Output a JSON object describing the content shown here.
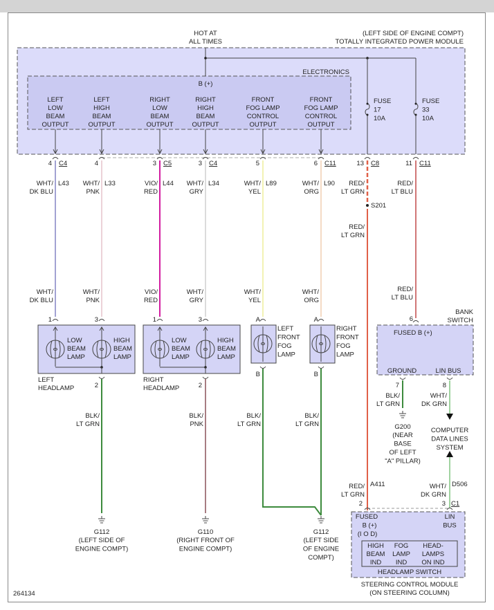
{
  "diagram_id": "264134",
  "colors": {
    "module_fill": "#dcdcfa",
    "electronics_fill": "#cacaf2",
    "component_fill": "#d4d4f6"
  },
  "tipm": {
    "location": "(LEFT SIDE OF ENGINE COMPT)",
    "name": "TOTALLY INTEGRATED POWER MODULE",
    "hot_at": [
      "HOT AT",
      "ALL TIMES"
    ],
    "electronics": "ELECTRONICS",
    "b_plus": "B (+)",
    "outputs": [
      [
        "LEFT",
        "LOW",
        "BEAM",
        "OUTPUT"
      ],
      [
        "LEFT",
        "HIGH",
        "BEAM",
        "OUTPUT"
      ],
      [
        "RIGHT",
        "LOW",
        "BEAM",
        "OUTPUT"
      ],
      [
        "RIGHT",
        "HIGH",
        "BEAM",
        "OUTPUT"
      ],
      [
        "FRONT",
        "FOG LAMP",
        "CONTROL",
        "OUTPUT"
      ],
      [
        "FRONT",
        "FOG LAMP",
        "CONTROL",
        "OUTPUT"
      ]
    ],
    "fuses": [
      [
        "FUSE",
        "17",
        "10A"
      ],
      [
        "FUSE",
        "33",
        "10A"
      ]
    ]
  },
  "connectors": [
    {
      "pin": "4",
      "name": "C4"
    },
    {
      "pin": "4",
      "name": ""
    },
    {
      "pin": "3",
      "name": "C5"
    },
    {
      "pin": "3",
      "name": "C4"
    },
    {
      "pin": "5",
      "name": ""
    },
    {
      "pin": "6",
      "name": "C11"
    },
    {
      "pin": "13",
      "name": "C8"
    },
    {
      "pin": "11",
      "name": "C11"
    }
  ],
  "wires": [
    {
      "label": [
        "WHT/",
        "DK BLU"
      ],
      "circuit": "L43",
      "color": "#8484c4"
    },
    {
      "label": [
        "WHT/",
        "PNK"
      ],
      "circuit": "L33",
      "color": "#e6c4cc"
    },
    {
      "label": [
        "VIO/",
        "RED"
      ],
      "circuit": "L44",
      "color": "#d21ca0"
    },
    {
      "label": [
        "WHT/",
        "GRY"
      ],
      "circuit": "L34",
      "color": "#cfcfcf"
    },
    {
      "label": [
        "WHT/",
        "YEL"
      ],
      "circuit": "L89",
      "color": "#eeee9a"
    },
    {
      "label": [
        "WHT/",
        "ORG"
      ],
      "circuit": "L90",
      "color": "#f0ceb0"
    },
    {
      "label": [
        "RED/",
        "LT GRN"
      ],
      "circuit": "A411",
      "color": "#e06048"
    },
    {
      "label": [
        "RED/",
        "LT BLU"
      ],
      "circuit": "",
      "color": "#c04848"
    }
  ],
  "splice": "S201",
  "headlamps": [
    {
      "pins": [
        "1",
        "3",
        "2"
      ],
      "lamps": [
        [
          "LOW",
          "BEAM",
          "LAMP"
        ],
        [
          "HIGH",
          "BEAM",
          "LAMP"
        ]
      ],
      "name": [
        "LEFT",
        "HEADLAMP"
      ]
    },
    {
      "pins": [
        "1",
        "3",
        "2"
      ],
      "lamps": [
        [
          "LOW",
          "BEAM",
          "LAMP"
        ],
        [
          "HIGH",
          "BEAM",
          "LAMP"
        ]
      ],
      "name": [
        "RIGHT",
        "HEADLAMP"
      ]
    }
  ],
  "fog_lamps": [
    {
      "pins": [
        "A",
        "B"
      ],
      "name": [
        "LEFT",
        "FRONT",
        "FOG",
        "LAMP"
      ]
    },
    {
      "pins": [
        "A",
        "B"
      ],
      "name": [
        "RIGHT",
        "FRONT",
        "FOG",
        "LAMP"
      ]
    }
  ],
  "ground_wires": [
    {
      "label": [
        "BLK/",
        "LT GRN"
      ],
      "color": "#3c8a3c"
    },
    {
      "label": [
        "BLK/",
        "PNK"
      ],
      "color": "#8a5058"
    },
    {
      "label": [
        "BLK/",
        "LT GRN"
      ],
      "color": "#3c8a3c"
    },
    {
      "label": [
        "BLK/",
        "LT GRN"
      ],
      "color": "#3c8a3c"
    }
  ],
  "grounds": [
    {
      "id": "G112",
      "location": [
        "(LEFT SIDE OF",
        "ENGINE COMPT)"
      ]
    },
    {
      "id": "G110",
      "location": [
        "(RIGHT FRONT OF",
        "ENGINE COMPT)"
      ]
    },
    {
      "id": "G112",
      "location": [
        "(LEFT SIDE",
        "OF ENGINE",
        "COMPT)"
      ]
    }
  ],
  "bank_switch": {
    "name": [
      "BANK",
      "SWITCH"
    ],
    "fused_b": "FUSED B (+)",
    "ground": "GROUND",
    "lin_bus": "LIN BUS",
    "pins": [
      "6",
      "7",
      "8"
    ],
    "ground_wire": {
      "label": [
        "BLK/",
        "LT GRN"
      ],
      "color": "#3c8a3c"
    },
    "lin_wire": {
      "label": [
        "WHT/",
        "DK GRN"
      ],
      "color": "#80c480"
    },
    "ground_id": "G200",
    "ground_location": [
      "(NEAR",
      "BASE",
      "OF LEFT",
      "\"A\" PILLAR)"
    ]
  },
  "data_lines": [
    "COMPUTER",
    "DATA LINES",
    "SYSTEM"
  ],
  "scm_wires": {
    "power": {
      "label": [
        "RED/",
        "LT GRN"
      ],
      "circuit": "A411",
      "pin": "2"
    },
    "lin": {
      "label": [
        "WHT/",
        "DK GRN"
      ],
      "circuit": "D506",
      "pin": "3",
      "connector": "C1"
    }
  },
  "steering_module": {
    "fused_b": [
      "FUSED",
      "B (+)",
      "(I O D)"
    ],
    "lin_bus": [
      "LIN",
      "BUS"
    ],
    "indicators": [
      [
        "HIGH",
        "BEAM",
        "IND"
      ],
      [
        "FOG",
        "LAMP",
        "IND"
      ],
      [
        "HEAD-",
        "LAMPS",
        "ON IND"
      ]
    ],
    "switch_name": "HEADLAMP SWITCH",
    "name": [
      "STEERING CONTROL MODULE",
      "(ON STEERING COLUMN)"
    ]
  }
}
